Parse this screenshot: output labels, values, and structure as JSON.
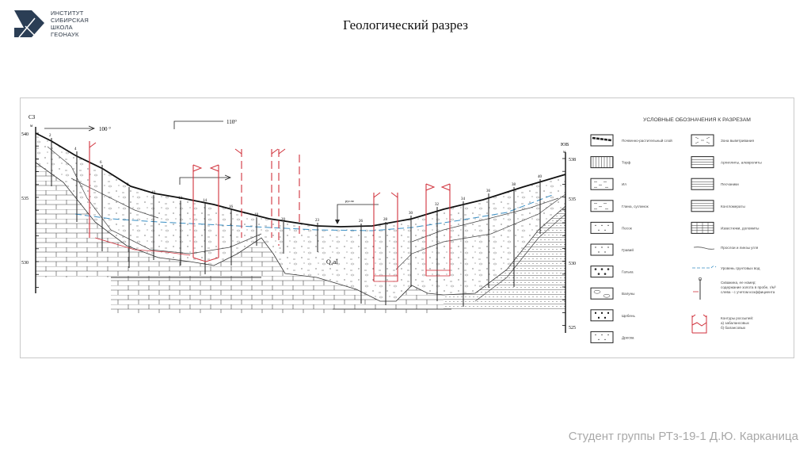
{
  "logo": {
    "lines": [
      "ИНСТИТУТ",
      "СИБИРСКАЯ",
      "ШКОЛА",
      "ГЕОНАУК"
    ],
    "color": "#2b3e55"
  },
  "title": "Геологический разрез",
  "section": {
    "left_end": "СЗ",
    "right_end": "ЮВ",
    "unit": "м",
    "left_ticks": [
      "540",
      "535",
      "530"
    ],
    "right_ticks": [
      "538",
      "535",
      "530",
      "525"
    ],
    "direction_1": "100 °",
    "direction_2": "110°",
    "channel_label": "русло",
    "deposit_label": "Q₄al",
    "boreholes": [
      "2",
      "4",
      "6",
      "8",
      "10",
      "12",
      "14",
      "16",
      "18",
      "20",
      "23",
      "26",
      "28",
      "30",
      "32",
      "34",
      "36",
      "38",
      "40"
    ],
    "colors": {
      "contour": "#d0323c",
      "groundwater": "#3a8fc4",
      "line": "#222222"
    }
  },
  "legend": {
    "title": "УСЛОВНЫЕ ОБОЗНАЧЕНИЯ К РАЗРЕЗАМ",
    "left": [
      "Почвенно-растительный слой",
      "Торф",
      "Ил",
      "Глина, суглинок",
      "Песок",
      "Гравий",
      "Галька",
      "Валуны",
      "Щебень",
      "Дресва"
    ],
    "right": [
      "Зона выветривания",
      "Аргиллиты, алевролиты",
      "Песчаники",
      "Конгломераты",
      "Известняки, доломиты"
    ],
    "coal": "Прослои и линзы угля",
    "groundwater": "Уровень грунтовых вод",
    "borehole": [
      "Скважина, ее номер;",
      "содержание золота в пробе, г/м³",
      "слева - с учетом коэффициента"
    ],
    "contours": [
      "Контуры россыпей:",
      "а) забалансовых",
      "б) балансовых"
    ]
  },
  "footer": "Студент группы РТз-19-1 Д.Ю. Карканица"
}
